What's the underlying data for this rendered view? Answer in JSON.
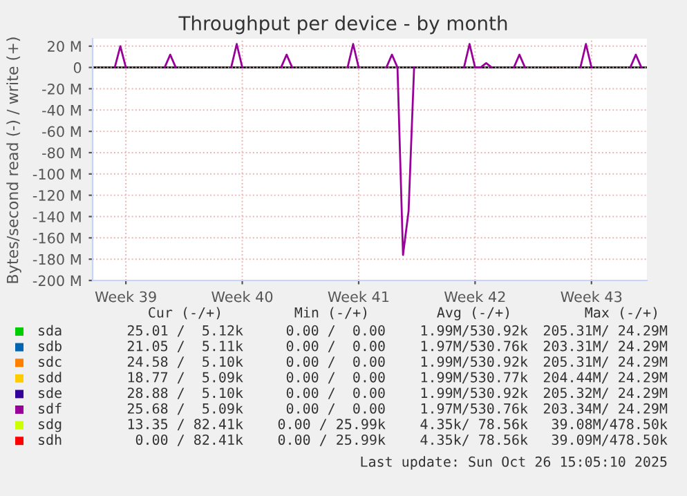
{
  "chart_data": {
    "type": "line",
    "title": "Throughput per device - by month",
    "ylabel": "Bytes/second read (-) / write (+)",
    "categories": [
      null,
      null,
      null,
      null,
      null,
      null,
      "Week 39",
      null,
      null,
      null,
      null,
      null,
      null,
      null,
      null,
      null,
      null,
      null,
      null,
      null,
      null,
      null,
      null,
      null,
      null,
      null,
      null,
      "Week 40",
      null,
      null,
      null,
      null,
      null,
      null,
      null,
      null,
      null,
      null,
      null,
      null,
      null,
      null,
      null,
      null,
      null,
      null,
      null,
      null,
      "Week 41",
      null,
      null,
      null,
      null,
      null,
      null,
      null,
      null,
      null,
      null,
      null,
      null,
      null,
      null,
      null,
      null,
      null,
      null,
      null,
      null,
      "Week 42",
      null,
      null,
      null,
      null,
      null,
      null,
      null,
      null,
      null,
      null,
      null,
      null,
      null,
      null,
      null,
      null,
      null,
      null,
      null,
      null,
      "Week 43",
      null,
      null,
      null,
      null,
      null,
      null,
      null,
      null,
      null,
      null
    ],
    "ylim": [
      -200,
      27
    ],
    "yticks": [
      {
        "value": -200,
        "label": "-200 M"
      },
      {
        "value": -180,
        "label": "-180 M"
      },
      {
        "value": -160,
        "label": "-160 M"
      },
      {
        "value": -140,
        "label": "-140 M"
      },
      {
        "value": -120,
        "label": "-120 M"
      },
      {
        "value": -100,
        "label": "-100 M"
      },
      {
        "value": -80,
        "label": "-80 M"
      },
      {
        "value": -60,
        "label": "-60 M"
      },
      {
        "value": -40,
        "label": "-40 M"
      },
      {
        "value": -20,
        "label": "-20 M"
      },
      0,
      {
        "value": 20,
        "label": "20 M"
      }
    ],
    "series": [
      {
        "name": "sda",
        "color": "#00cc00",
        "values": [
          null,
          null,
          null,
          null,
          null,
          null,
          null,
          null,
          null,
          null,
          null,
          null,
          null,
          null,
          null,
          null,
          null,
          null,
          null,
          null,
          null,
          null,
          null,
          null,
          null,
          null,
          null,
          null,
          null,
          null,
          null,
          null,
          null,
          null,
          null,
          null,
          null,
          null,
          null,
          null,
          null,
          null,
          null,
          null,
          null,
          null,
          null,
          null,
          null,
          null,
          null,
          null,
          null,
          null,
          null,
          null,
          null,
          null,
          null,
          null,
          null,
          null,
          null,
          null,
          null,
          null,
          null,
          null,
          null,
          null,
          null,
          null,
          null,
          null,
          null,
          null,
          null,
          null,
          null,
          null,
          null,
          null,
          null,
          null,
          null,
          null,
          null,
          null,
          null,
          null,
          null,
          null,
          null,
          null,
          null,
          null,
          null,
          null,
          null,
          null,
          null
        ]
      },
      {
        "name": "sdb",
        "color": "#0066b3",
        "values": [
          null,
          null,
          null,
          null,
          null,
          null,
          null,
          null,
          null,
          null,
          null,
          null,
          null,
          null,
          null,
          null,
          null,
          null,
          null,
          null,
          null,
          null,
          null,
          null,
          null,
          null,
          null,
          null,
          null,
          null,
          null,
          null,
          null,
          null,
          null,
          null,
          null,
          null,
          null,
          null,
          null,
          null,
          null,
          null,
          null,
          null,
          null,
          null,
          null,
          null,
          null,
          null,
          null,
          null,
          null,
          null,
          null,
          null,
          null,
          null,
          null,
          null,
          null,
          null,
          null,
          null,
          null,
          null,
          null,
          null,
          null,
          null,
          null,
          null,
          null,
          null,
          null,
          null,
          null,
          null,
          null,
          null,
          null,
          null,
          null,
          null,
          null,
          null,
          null,
          null,
          null,
          null,
          null,
          null,
          null,
          null,
          null,
          null,
          null,
          null,
          null
        ]
      },
      {
        "name": "sdc",
        "color": "#ff8000",
        "values": [
          null,
          null,
          null,
          null,
          null,
          null,
          null,
          null,
          null,
          null,
          null,
          null,
          null,
          null,
          null,
          null,
          null,
          null,
          null,
          null,
          null,
          null,
          null,
          null,
          null,
          null,
          null,
          null,
          null,
          null,
          null,
          null,
          null,
          null,
          null,
          null,
          null,
          null,
          null,
          null,
          null,
          null,
          null,
          null,
          null,
          null,
          null,
          null,
          null,
          null,
          null,
          null,
          null,
          null,
          null,
          null,
          null,
          null,
          null,
          null,
          null,
          null,
          null,
          null,
          null,
          null,
          null,
          null,
          null,
          null,
          null,
          null,
          null,
          null,
          null,
          null,
          null,
          null,
          null,
          null,
          null,
          null,
          null,
          null,
          null,
          null,
          null,
          null,
          null,
          null,
          null,
          null,
          null,
          null,
          null,
          null,
          null,
          null,
          null,
          null,
          null
        ]
      },
      {
        "name": "sdd",
        "color": "#ffcc00",
        "values": [
          null,
          null,
          null,
          null,
          null,
          null,
          null,
          null,
          null,
          null,
          null,
          null,
          null,
          null,
          null,
          null,
          null,
          null,
          null,
          null,
          null,
          null,
          null,
          null,
          null,
          null,
          null,
          null,
          null,
          null,
          null,
          null,
          null,
          null,
          null,
          null,
          null,
          null,
          null,
          null,
          null,
          null,
          null,
          null,
          null,
          null,
          null,
          null,
          null,
          null,
          null,
          null,
          null,
          null,
          null,
          null,
          null,
          null,
          null,
          null,
          null,
          null,
          null,
          null,
          null,
          null,
          null,
          null,
          null,
          null,
          null,
          null,
          null,
          null,
          null,
          null,
          null,
          null,
          null,
          null,
          null,
          null,
          null,
          null,
          null,
          null,
          null,
          null,
          null,
          null,
          null,
          null,
          null,
          null,
          null,
          null,
          null,
          null,
          null,
          null,
          null
        ]
      },
      {
        "name": "sde",
        "color": "#330099",
        "values": [
          null,
          null,
          null,
          null,
          null,
          null,
          null,
          null,
          null,
          null,
          null,
          null,
          null,
          null,
          null,
          null,
          null,
          null,
          null,
          null,
          null,
          null,
          null,
          null,
          null,
          null,
          null,
          null,
          null,
          null,
          null,
          null,
          null,
          null,
          null,
          null,
          null,
          null,
          null,
          null,
          null,
          null,
          null,
          null,
          null,
          null,
          null,
          null,
          null,
          null,
          null,
          null,
          null,
          null,
          null,
          null,
          null,
          null,
          null,
          null,
          null,
          null,
          null,
          null,
          null,
          null,
          null,
          null,
          null,
          null,
          null,
          null,
          null,
          null,
          null,
          null,
          null,
          null,
          null,
          null,
          null,
          null,
          null,
          null,
          null,
          null,
          null,
          null,
          null,
          null,
          null,
          null,
          null,
          null,
          null,
          null,
          null,
          null,
          null,
          null,
          null
        ]
      },
      {
        "name": "sdf",
        "color": "#990099",
        "values": [
          null,
          null,
          null,
          null,
          0,
          20,
          0,
          null,
          null,
          null,
          null,
          null,
          null,
          0,
          12,
          0,
          null,
          null,
          null,
          null,
          null,
          null,
          null,
          null,
          null,
          0,
          22,
          0,
          null,
          null,
          null,
          null,
          null,
          null,
          0,
          12,
          0,
          null,
          null,
          null,
          null,
          null,
          null,
          null,
          null,
          null,
          0,
          22,
          0,
          null,
          null,
          null,
          null,
          0,
          12,
          0,
          -176,
          -135,
          0,
          null,
          null,
          null,
          null,
          null,
          null,
          null,
          null,
          0,
          22,
          0,
          0,
          4,
          0,
          null,
          null,
          null,
          0,
          12,
          0,
          null,
          null,
          null,
          null,
          null,
          null,
          null,
          null,
          null,
          0,
          22,
          0,
          null,
          null,
          null,
          null,
          null,
          null,
          0,
          12,
          0,
          null
        ]
      },
      {
        "name": "sdg",
        "color": "#ccff00",
        "values": [
          null,
          null,
          null,
          null,
          null,
          null,
          null,
          null,
          null,
          null,
          null,
          null,
          null,
          null,
          null,
          null,
          null,
          null,
          null,
          null,
          null,
          null,
          null,
          null,
          null,
          null,
          null,
          null,
          null,
          null,
          null,
          null,
          null,
          null,
          null,
          null,
          null,
          null,
          null,
          null,
          null,
          null,
          null,
          null,
          null,
          null,
          null,
          null,
          null,
          null,
          null,
          null,
          null,
          null,
          null,
          null,
          null,
          null,
          null,
          null,
          null,
          null,
          null,
          null,
          null,
          null,
          null,
          null,
          null,
          null,
          null,
          null,
          null,
          null,
          null,
          null,
          null,
          null,
          null,
          null,
          null,
          null,
          null,
          null,
          null,
          null,
          null,
          null,
          null,
          null,
          null,
          null,
          null,
          null,
          null,
          null,
          null,
          null,
          null,
          null,
          null
        ]
      },
      {
        "name": "sdh",
        "color": "#ff0000",
        "values": [
          null,
          null,
          null,
          null,
          null,
          null,
          null,
          null,
          null,
          null,
          null,
          null,
          null,
          null,
          null,
          null,
          null,
          null,
          null,
          null,
          null,
          null,
          null,
          null,
          null,
          null,
          null,
          null,
          null,
          null,
          null,
          null,
          null,
          null,
          null,
          null,
          null,
          null,
          null,
          null,
          null,
          null,
          null,
          null,
          null,
          null,
          null,
          null,
          null,
          null,
          null,
          null,
          null,
          null,
          null,
          null,
          null,
          null,
          null,
          null,
          null,
          null,
          null,
          null,
          null,
          null,
          null,
          null,
          null,
          null,
          null,
          null,
          null,
          null,
          null,
          null,
          null,
          null,
          null,
          null,
          null,
          null,
          null,
          null,
          null,
          null,
          null,
          null,
          null,
          null,
          null,
          null,
          null,
          null,
          null,
          null,
          null,
          null,
          null,
          null,
          null
        ]
      }
    ],
    "ref_lines": [
      {
        "axis": "y",
        "value": 0,
        "color": "#000000"
      }
    ],
    "grid": true,
    "legend": "bottom",
    "annotations": [
      "Cur (-/+)",
      "Min (-/+)",
      "Avg (-/+)",
      "Max (-/+)",
      "25.01 /  5.12k",
      "0.00 /  0.00",
      "1.99M/530.92k",
      "205.31M/ 24.29M",
      "21.05 /  5.11k",
      "0.00 /  0.00",
      "1.97M/530.76k",
      "203.31M/ 24.29M",
      "24.58 /  5.10k",
      "0.00 /  0.00",
      "1.99M/530.92k",
      "205.31M/ 24.29M",
      "18.77 /  5.09k",
      "0.00 /  0.00",
      "1.99M/530.77k",
      "204.44M/ 24.29M",
      "28.88 /  5.10k",
      "0.00 /  0.00",
      "1.99M/530.92k",
      "205.32M/ 24.29M",
      "25.68 /  5.09k",
      "0.00 /  0.00",
      "1.97M/530.76k",
      "203.34M/ 24.29M",
      "13.35 / 82.41k",
      "0.00 / 25.99k",
      "4.35k/ 78.56k",
      "39.08M/478.50k",
      "0.00 / 82.41k",
      "0.00 / 25.99k",
      "4.35k/ 78.56k",
      "39.09M/478.50k",
      "Last update: Sun Oct 26 15:05:10 2025"
    ]
  }
}
